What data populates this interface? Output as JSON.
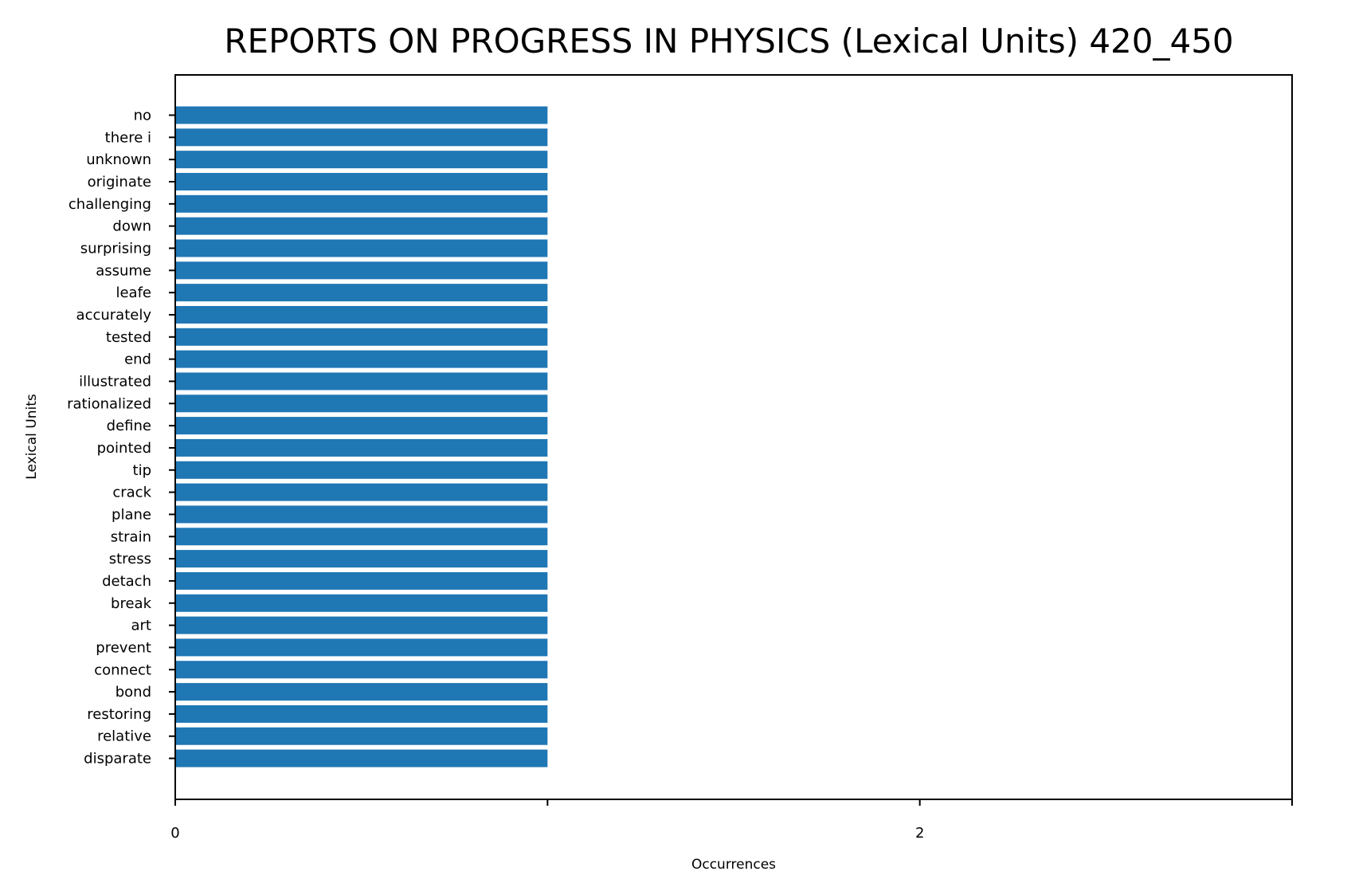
{
  "chart_data": {
    "type": "bar",
    "orientation": "horizontal",
    "title": "REPORTS ON PROGRESS IN PHYSICS (Lexical Units) 420_450",
    "xlabel": "Occurrences",
    "ylabel": "Lexical Units",
    "xlim": [
      0,
      3
    ],
    "x_ticks": [
      0,
      1,
      2,
      3
    ],
    "x_tick_labels": [
      "0",
      "",
      "2",
      ""
    ],
    "grid": false,
    "bar_color": "#1f77b4",
    "categories": [
      "no",
      "there i",
      "unknown",
      "originate",
      "challenging",
      "down",
      "surprising",
      "assume",
      "leafe",
      "accurately",
      "tested",
      "end",
      "illustrated",
      "rationalized",
      "define",
      "pointed",
      "tip",
      "crack",
      "plane",
      "strain",
      "stress",
      "detach",
      "break",
      "art",
      "prevent",
      "connect",
      "bond",
      "restoring",
      "relative",
      "disparate"
    ],
    "values": [
      1,
      1,
      1,
      1,
      1,
      1,
      1,
      1,
      1,
      1,
      1,
      1,
      1,
      1,
      1,
      1,
      1,
      1,
      1,
      1,
      1,
      1,
      1,
      1,
      1,
      1,
      1,
      1,
      1,
      1
    ]
  }
}
